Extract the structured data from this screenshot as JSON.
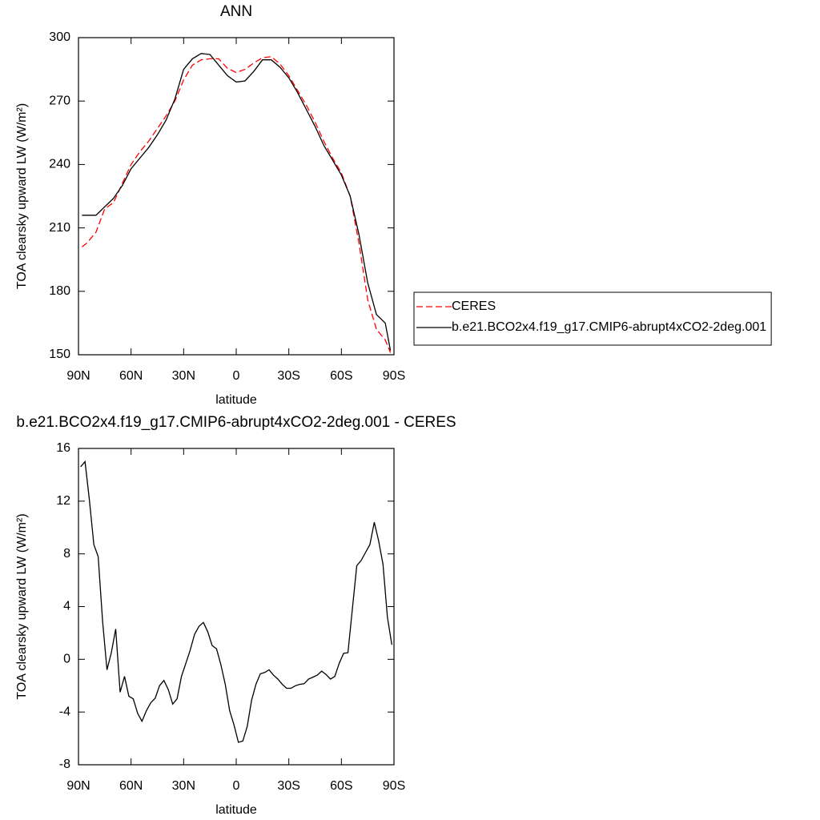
{
  "chart_data": [
    {
      "type": "line",
      "title": "ANN",
      "xlabel": "latitude",
      "ylabel": "TOA clearsky upward LW (W/m²)",
      "x": [
        88,
        85,
        80,
        75,
        70,
        65,
        60,
        55,
        50,
        45,
        40,
        35,
        30,
        25,
        20,
        15,
        10,
        5,
        0,
        -5,
        -10,
        -15,
        -20,
        -25,
        -30,
        -35,
        -40,
        -45,
        -50,
        -55,
        -60,
        -65,
        -70,
        -75,
        -80,
        -85,
        -88
      ],
      "series": [
        {
          "name": "CERES",
          "color": "#ff0000",
          "dashed": true,
          "values": [
            201,
            203,
            208,
            219,
            222,
            231,
            240,
            246,
            251,
            257,
            263,
            270,
            280,
            287,
            289.5,
            290,
            290,
            285.5,
            283.5,
            285,
            288,
            290.5,
            291,
            287.5,
            282,
            275,
            268,
            260,
            251,
            243,
            236,
            225,
            203,
            176,
            162,
            157,
            151
          ]
        },
        {
          "name": "b.e21.BCO2x4.f19_g17.CMIP6-abrupt4xCO2-2deg.001",
          "color": "#000000",
          "dashed": false,
          "values": [
            216,
            216,
            216,
            220,
            224,
            230,
            238,
            243,
            248,
            254,
            261,
            271,
            285,
            290,
            292.5,
            292,
            287,
            282,
            279,
            279.5,
            284,
            289.5,
            289.5,
            286,
            281,
            274,
            266,
            258,
            249,
            242,
            235,
            225,
            207,
            184,
            169,
            165,
            152
          ]
        }
      ],
      "xlim": [
        90,
        -90
      ],
      "xticks": [
        {
          "value": 90,
          "label": "90N"
        },
        {
          "value": 60,
          "label": "60N"
        },
        {
          "value": 30,
          "label": "30N"
        },
        0,
        {
          "value": -30,
          "label": "30S"
        },
        {
          "value": -60,
          "label": "60S"
        },
        {
          "value": -90,
          "label": "90S"
        }
      ],
      "ylim": [
        150,
        300
      ],
      "yticks": [
        150,
        180,
        210,
        240,
        270,
        300
      ],
      "legend": "right"
    },
    {
      "type": "line",
      "title": "b.e21.BCO2x4.f19_g17.CMIP6-abrupt4xCO2-2deg.001 - CERES",
      "xlabel": "latitude",
      "ylabel": "TOA clearsky upward LW (W/m²)",
      "x": [
        88.75,
        86.25,
        83.75,
        81.25,
        78.75,
        76.25,
        73.75,
        71.25,
        68.75,
        66.25,
        63.75,
        61.25,
        58.75,
        56.25,
        53.75,
        51.25,
        48.75,
        46.25,
        43.75,
        41.25,
        38.75,
        36.25,
        33.75,
        31.25,
        28.75,
        26.25,
        23.75,
        21.25,
        18.75,
        16.25,
        13.75,
        11.25,
        8.75,
        6.25,
        3.75,
        1.25,
        -1.25,
        -3.75,
        -6.25,
        -8.75,
        -11.25,
        -13.75,
        -16.25,
        -18.75,
        -21.25,
        -23.75,
        -26.25,
        -28.75,
        -31.25,
        -33.75,
        -36.25,
        -38.75,
        -41.25,
        -43.75,
        -46.25,
        -48.75,
        -51.25,
        -53.75,
        -56.25,
        -58.75,
        -61.25,
        -63.75,
        -66.25,
        -68.75,
        -71.25,
        -73.75,
        -76.25,
        -78.75,
        -81.25,
        -83.75,
        -86.25,
        -88.75
      ],
      "series": [
        {
          "color": "#000000",
          "dashed": false,
          "values": [
            14.6,
            15.0,
            12.05,
            8.7,
            7.8,
            2.9,
            -0.8,
            0.5,
            2.3,
            -2.5,
            -1.3,
            -2.8,
            -3.0,
            -4.1,
            -4.7,
            -3.9,
            -3.3,
            -2.95,
            -2.0,
            -1.6,
            -2.3,
            -3.4,
            -3.0,
            -1.3,
            -0.3,
            0.7,
            1.9,
            2.5,
            2.8,
            2.1,
            1.05,
            0.8,
            -0.4,
            -1.9,
            -3.9,
            -5.0,
            -6.3,
            -6.2,
            -5.1,
            -3.1,
            -1.9,
            -1.1,
            -1.0,
            -0.8,
            -1.2,
            -1.5,
            -1.9,
            -2.2,
            -2.2,
            -2.0,
            -1.9,
            -1.85,
            -1.5,
            -1.35,
            -1.2,
            -0.9,
            -1.15,
            -1.5,
            -1.3,
            -0.3,
            0.45,
            0.5,
            3.8,
            7.1,
            7.5,
            8.1,
            8.7,
            10.4,
            9.0,
            7.2,
            3.2,
            1.1
          ]
        }
      ],
      "xlim": [
        90,
        -90
      ],
      "xticks": [
        {
          "value": 90,
          "label": "90N"
        },
        {
          "value": 60,
          "label": "60N"
        },
        {
          "value": 30,
          "label": "30N"
        },
        0,
        {
          "value": -30,
          "label": "30S"
        },
        {
          "value": -60,
          "label": "60S"
        },
        {
          "value": -90,
          "label": "90S"
        }
      ],
      "ylim": [
        -8,
        16
      ],
      "yticks": [
        -8,
        -4,
        0,
        4,
        8,
        12,
        16
      ]
    }
  ]
}
